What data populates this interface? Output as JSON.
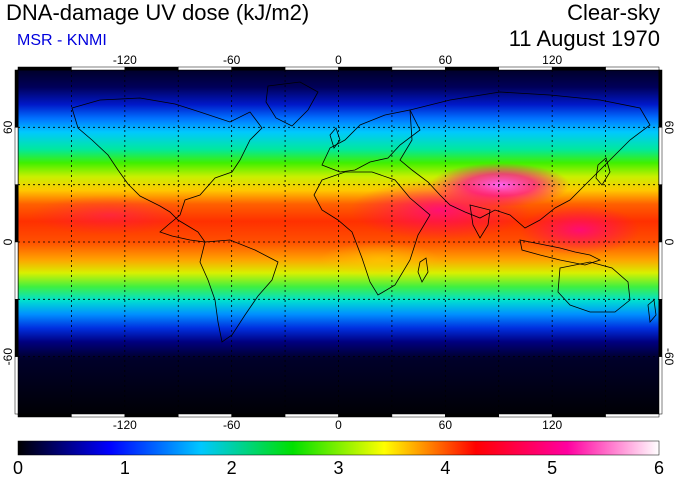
{
  "header": {
    "title": "DNA-damage UV dose (kJ/m2)",
    "credit": "MSR - KNMI",
    "sky_condition": "Clear-sky",
    "date": "11 August 1970"
  },
  "map": {
    "longitude_ticks": [
      "-120",
      "-60",
      "0",
      "60",
      "120"
    ],
    "latitude_ticks": [
      "60",
      "0",
      "-60"
    ],
    "lon_range": [
      -180,
      180
    ],
    "lat_range": [
      -90,
      90
    ],
    "grid": "dotted every 30 degrees"
  },
  "colorbar": {
    "labels": [
      "0",
      "1",
      "2",
      "3",
      "4",
      "5",
      "6"
    ],
    "min": 0,
    "max": 6,
    "colors": [
      "#000000",
      "#0000ff",
      "#00c8ff",
      "#00e000",
      "#ffff00",
      "#ff0000",
      "#ff00a0",
      "#ffffff"
    ]
  },
  "colors": {
    "credit": "#0000dd",
    "coastline": "#000000"
  }
}
